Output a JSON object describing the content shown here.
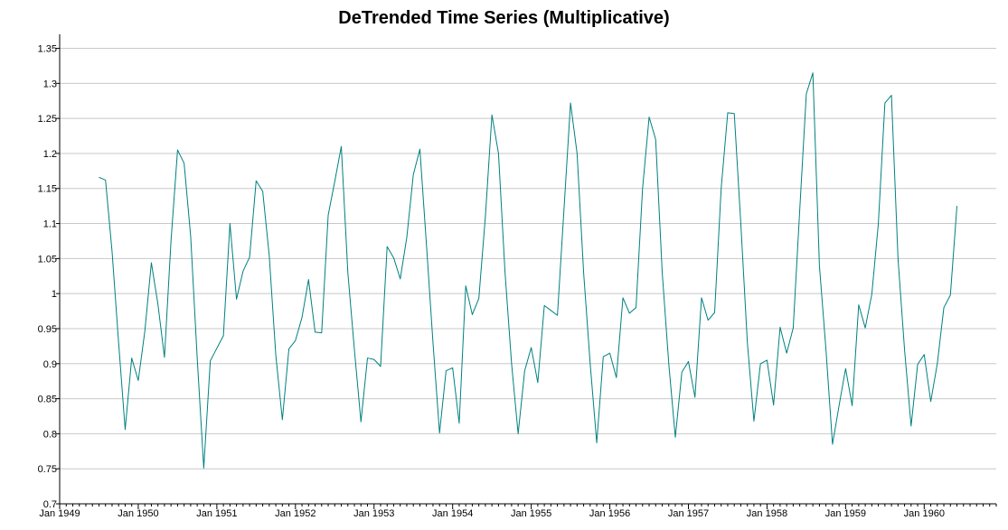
{
  "chart_data": {
    "type": "line",
    "title": "DeTrended Time Series (Multiplicative)",
    "xlabel": "",
    "ylabel": "",
    "x_start": "1949-07",
    "x_step": "month",
    "xlim": [
      "1949-01",
      "1960-12"
    ],
    "ylim": [
      0.7,
      1.37
    ],
    "y_ticks": [
      0.7,
      0.75,
      0.8,
      0.85,
      0.9,
      0.95,
      1,
      1.05,
      1.1,
      1.15,
      1.2,
      1.25,
      1.3,
      1.35
    ],
    "y_tick_labels": [
      "0.7",
      "0.75",
      "0.8",
      "0.85",
      "0.9",
      "0.95",
      "1",
      "1.05",
      "1.1",
      "1.15",
      "1.2",
      "1.25",
      "1.3",
      "1.35"
    ],
    "x_ticks": [
      "1949-01",
      "1950-01",
      "1951-01",
      "1952-01",
      "1953-01",
      "1954-01",
      "1955-01",
      "1956-01",
      "1957-01",
      "1958-01",
      "1959-01",
      "1960-01"
    ],
    "x_tick_labels": [
      "Jan 1949",
      "Jan 1950",
      "Jan 1951",
      "Jan 1952",
      "Jan 1953",
      "Jan 1954",
      "Jan 1955",
      "Jan 1956",
      "Jan 1957",
      "Jan 1958",
      "Jan 1959",
      "Jan 1960"
    ],
    "grid": true,
    "series": [
      {
        "color": "#008080",
        "values": [
          1.166,
          1.162,
          1.06,
          0.93,
          0.806,
          0.908,
          0.876,
          0.946,
          1.044,
          0.985,
          0.909,
          1.075,
          1.205,
          1.186,
          1.082,
          0.908,
          0.751,
          0.904,
          0.922,
          0.94,
          1.1,
          0.992,
          1.032,
          1.052,
          1.161,
          1.146,
          1.054,
          0.912,
          0.82,
          0.921,
          0.933,
          0.966,
          1.02,
          0.945,
          0.944,
          1.112,
          1.16,
          1.21,
          1.03,
          0.92,
          0.817,
          0.908,
          0.906,
          0.896,
          1.067,
          1.051,
          1.021,
          1.08,
          1.17,
          1.206,
          1.07,
          0.93,
          0.801,
          0.89,
          0.894,
          0.815,
          1.011,
          0.97,
          0.993,
          1.11,
          1.255,
          1.2,
          1.03,
          0.9,
          0.8,
          0.89,
          0.923,
          0.873,
          0.983,
          0.976,
          0.969,
          1.12,
          1.272,
          1.2,
          1.03,
          0.9,
          0.787,
          0.91,
          0.915,
          0.88,
          0.994,
          0.972,
          0.98,
          1.15,
          1.252,
          1.22,
          1.03,
          0.9,
          0.795,
          0.888,
          0.903,
          0.852,
          0.994,
          0.962,
          0.973,
          1.15,
          1.258,
          1.257,
          1.1,
          0.93,
          0.818,
          0.9,
          0.905,
          0.841,
          0.952,
          0.915,
          0.951,
          1.12,
          1.285,
          1.315,
          1.04,
          0.92,
          0.785,
          0.84,
          0.893,
          0.84,
          0.984,
          0.951,
          0.999,
          1.1,
          1.272,
          1.283,
          1.05,
          0.92,
          0.811,
          0.899,
          0.913,
          0.846,
          0.9,
          0.98,
          0.998,
          1.125
        ]
      }
    ]
  }
}
